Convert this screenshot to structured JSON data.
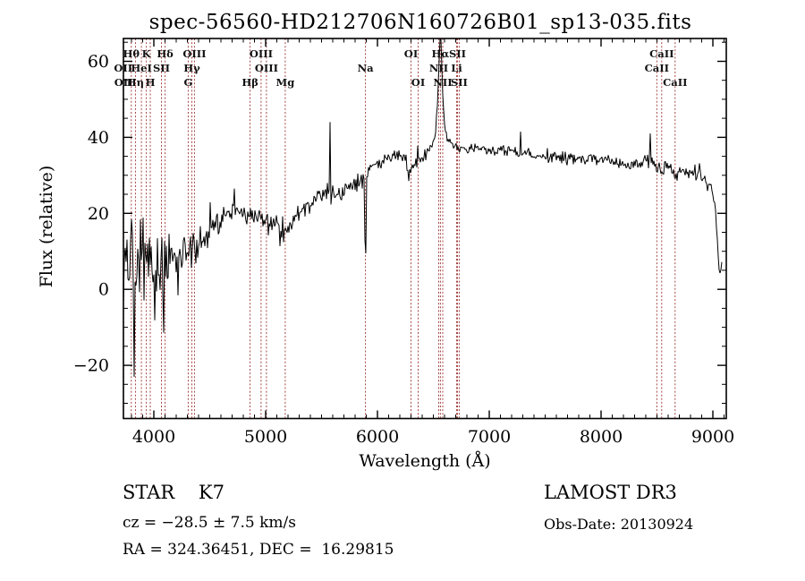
{
  "chart_data": {
    "type": "line",
    "title": "spec-56560-HD212706N160726B01_sp13-035.fits",
    "xlabel": "Wavelength (Å)",
    "ylabel": "Flux (relative)",
    "xlim": [
      3728,
      9120
    ],
    "ylim": [
      -34,
      66
    ],
    "xticks": [
      4000,
      5000,
      6000,
      7000,
      8000,
      9000
    ],
    "xtick_minor_step": 100,
    "yticks": [
      -20,
      0,
      20,
      40,
      60
    ],
    "ytick_labels": [
      "−20",
      "0",
      "20",
      "40",
      "60"
    ],
    "ytick_minor_step": 5,
    "grid": false,
    "legend": "none",
    "series_color": "#000000",
    "marker_line_color": "#9b3332",
    "noise_seed": 20130924,
    "sample_step_angstrom": 8,
    "clip": [
      -33.8,
      66
    ],
    "continuum_anchors": [
      [
        3728,
        9
      ],
      [
        3780,
        6
      ],
      [
        3850,
        7
      ],
      [
        3920,
        9
      ],
      [
        3980,
        6
      ],
      [
        4060,
        7
      ],
      [
        4150,
        9
      ],
      [
        4250,
        9
      ],
      [
        4350,
        10
      ],
      [
        4450,
        13
      ],
      [
        4550,
        17
      ],
      [
        4650,
        19.5
      ],
      [
        4750,
        20
      ],
      [
        4850,
        19
      ],
      [
        4950,
        18.5
      ],
      [
        5050,
        18
      ],
      [
        5120,
        17
      ],
      [
        5160,
        13.5
      ],
      [
        5200,
        14
      ],
      [
        5250,
        18.5
      ],
      [
        5350,
        22
      ],
      [
        5450,
        24
      ],
      [
        5550,
        25.5
      ],
      [
        5650,
        25
      ],
      [
        5750,
        26.5
      ],
      [
        5850,
        28
      ],
      [
        5940,
        32.5
      ],
      [
        6040,
        34
      ],
      [
        6140,
        35.5
      ],
      [
        6220,
        34.5
      ],
      [
        6290,
        31.5
      ],
      [
        6360,
        33.5
      ],
      [
        6430,
        35.5
      ],
      [
        6500,
        38
      ],
      [
        6525,
        43
      ],
      [
        6545,
        54
      ],
      [
        6558,
        66
      ],
      [
        6563,
        71
      ],
      [
        6570,
        65
      ],
      [
        6580,
        52
      ],
      [
        6595,
        45
      ],
      [
        6615,
        40.5
      ],
      [
        6650,
        38.5
      ],
      [
        6750,
        37
      ],
      [
        6900,
        37
      ],
      [
        7100,
        36.5
      ],
      [
        7300,
        36
      ],
      [
        7500,
        35
      ],
      [
        7700,
        34.5
      ],
      [
        7900,
        34.5
      ],
      [
        8100,
        33.5
      ],
      [
        8250,
        32.5
      ],
      [
        8380,
        33.5
      ],
      [
        8440,
        35
      ],
      [
        8470,
        33
      ],
      [
        8498,
        31
      ],
      [
        8520,
        32.5
      ],
      [
        8542,
        30
      ],
      [
        8580,
        32.5
      ],
      [
        8620,
        32
      ],
      [
        8662,
        29.5
      ],
      [
        8700,
        31.5
      ],
      [
        8800,
        30.5
      ],
      [
        8900,
        29.5
      ],
      [
        8990,
        27
      ],
      [
        9020,
        22
      ],
      [
        9045,
        10
      ],
      [
        9060,
        3
      ],
      [
        9080,
        6
      ]
    ],
    "noise_amplitude_anchors": [
      [
        3728,
        17
      ],
      [
        3850,
        15
      ],
      [
        3950,
        13
      ],
      [
        4050,
        10
      ],
      [
        4150,
        8
      ],
      [
        4250,
        6.5
      ],
      [
        4350,
        5.5
      ],
      [
        4450,
        4.5
      ],
      [
        4600,
        3.5
      ],
      [
        4800,
        3
      ],
      [
        5000,
        2.8
      ],
      [
        5300,
        2.8
      ],
      [
        5600,
        2.6
      ],
      [
        5900,
        2.4
      ],
      [
        6200,
        2.2
      ],
      [
        6450,
        2
      ],
      [
        6563,
        1.6
      ],
      [
        6700,
        1.8
      ],
      [
        7000,
        1.8
      ],
      [
        7500,
        1.9
      ],
      [
        8000,
        1.8
      ],
      [
        8500,
        2
      ],
      [
        8900,
        2.2
      ],
      [
        9080,
        2.5
      ]
    ],
    "narrow_features": [
      [
        4720,
        26.5
      ],
      [
        5577,
        44
      ],
      [
        5888,
        13
      ],
      [
        5896,
        9.5
      ],
      [
        6280,
        28.5
      ],
      [
        7280,
        41.5
      ],
      [
        8437,
        41
      ]
    ],
    "spectral_lines": [
      {
        "wavelength": 3798,
        "label": "Hθ",
        "row": 0
      },
      {
        "wavelength": 3933,
        "label": "K",
        "row": 0
      },
      {
        "wavelength": 4101,
        "label": "Hδ",
        "row": 0
      },
      {
        "wavelength": 4363,
        "label": "OIII",
        "row": 0
      },
      {
        "wavelength": 4959,
        "label": "OIII",
        "row": 0
      },
      {
        "wavelength": 6300,
        "label": "OI",
        "row": 0
      },
      {
        "wavelength": 6563,
        "label": "Hα",
        "row": 0
      },
      {
        "wavelength": 6716,
        "label": "SII",
        "row": 0
      },
      {
        "wavelength": 8542,
        "label": "CaII",
        "row": 0
      },
      {
        "wavelength": 3726,
        "label": "OII",
        "row": 1
      },
      {
        "wavelength": 3889,
        "label": "HeI",
        "row": 1
      },
      {
        "wavelength": 4068,
        "label": "SII",
        "row": 1
      },
      {
        "wavelength": 4340,
        "label": "Hγ",
        "row": 1
      },
      {
        "wavelength": 5007,
        "label": "OIII",
        "row": 1
      },
      {
        "wavelength": 5893,
        "label": "Na",
        "row": 1
      },
      {
        "wavelength": 6548,
        "label": "NII",
        "row": 1
      },
      {
        "wavelength": 6708,
        "label": "Li",
        "row": 1
      },
      {
        "wavelength": 8498,
        "label": "CaII",
        "row": 1
      },
      {
        "wavelength": 3729,
        "label": "OII",
        "row": 2
      },
      {
        "wavelength": 3835,
        "label": "Hη",
        "row": 2
      },
      {
        "wavelength": 3968,
        "label": "H",
        "row": 2
      },
      {
        "wavelength": 4307,
        "label": "G",
        "row": 2
      },
      {
        "wavelength": 4861,
        "label": "Hβ",
        "row": 2
      },
      {
        "wavelength": 5175,
        "label": "Mg",
        "row": 2
      },
      {
        "wavelength": 6364,
        "label": "OI",
        "row": 2
      },
      {
        "wavelength": 6584,
        "label": "NII",
        "row": 2
      },
      {
        "wavelength": 6731,
        "label": "SII",
        "row": 2
      },
      {
        "wavelength": 8662,
        "label": "CaII",
        "row": 2
      }
    ]
  },
  "footer": {
    "star": "STAR    K7",
    "survey": "LAMOST DR3",
    "cz": "cz = −28.5 ± 7.5 km/s",
    "obs_date": "Obs-Date: 20130924",
    "ra_dec": "RA = 324.36451, DEC =  16.29815"
  }
}
